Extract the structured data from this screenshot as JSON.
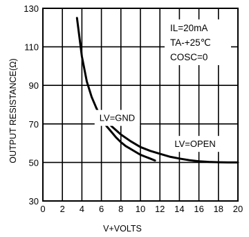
{
  "chart_data": {
    "type": "line",
    "title": "",
    "xlabel": "V+VOLTS",
    "ylabel": "OUTPUT RESISTANCE(Ω)",
    "xlim": [
      0,
      20
    ],
    "ylim": [
      30,
      130
    ],
    "x_ticks": [
      0,
      2,
      4,
      6,
      8,
      10,
      12,
      14,
      16,
      18,
      20
    ],
    "x_tick_labels": [
      "0",
      "2",
      "4",
      "6",
      "8",
      "10",
      "12",
      "14",
      "16",
      "18",
      "20"
    ],
    "y_ticks": [
      30,
      50,
      70,
      90,
      110,
      130
    ],
    "y_tick_labels": [
      "30",
      "50",
      "70",
      "90",
      "110",
      "130"
    ],
    "grid": true,
    "conditions": [
      "IL=20mA",
      "TA-+25℃",
      "COSC=0"
    ],
    "series": [
      {
        "name": "LV=GND",
        "x": [
          3.5,
          4,
          4.5,
          5,
          5.5,
          6,
          6.5,
          7,
          7.5,
          8,
          8.5,
          9,
          9.5,
          10,
          10.5,
          11,
          11.5
        ],
        "y": [
          125,
          105,
          92,
          84,
          78,
          73,
          69,
          66,
          63,
          60.5,
          58.5,
          57,
          55.5,
          54,
          53,
          52,
          51
        ]
      },
      {
        "name": "LV=OPEN",
        "x": [
          7,
          8,
          9,
          10,
          11,
          12,
          13,
          14,
          15,
          16,
          17,
          18,
          19,
          20
        ],
        "y": [
          69,
          64.5,
          61,
          58,
          56,
          54.5,
          53,
          52,
          51.2,
          50.6,
          50.3,
          50.1,
          50,
          50
        ]
      }
    ],
    "annotations": [
      {
        "text": "LV=GND",
        "x": 5.8,
        "y": 71.5
      },
      {
        "text": "LV=OPEN",
        "x": 13.5,
        "y": 58
      }
    ]
  }
}
